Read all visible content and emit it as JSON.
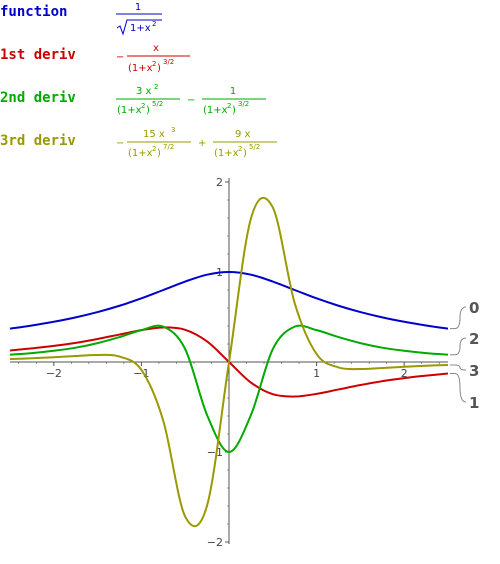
{
  "rows": [
    {
      "label": "function",
      "color": "#0000cc"
    },
    {
      "label": "1st deriv",
      "color": "#cc0000"
    },
    {
      "label": "2nd deriv",
      "color": "#00aa00"
    },
    {
      "label": "3rd deriv",
      "color": "#999900"
    }
  ],
  "formulas": {
    "f0_num": "1",
    "f0_den": "1+x",
    "f0_den_exp": "2",
    "f1_sign": "−",
    "f1_num": "x",
    "f1_den": "(1+x",
    "f1_den_exp": "2",
    "f1_den_close": ")",
    "f1_den_pow": "3/2",
    "f2_t1_num": "3 x",
    "f2_t1_num_exp": "2",
    "f2_t1_den": "(1+x",
    "f2_t1_den_exp": "2",
    "f2_t1_den_close": ")",
    "f2_t1_den_pow": "5/2",
    "f2_op": "−",
    "f2_t2_num": "1",
    "f2_t2_den": "(1+x",
    "f2_t2_den_exp": "2",
    "f2_t2_den_close": ")",
    "f2_t2_den_pow": "3/2",
    "f3_sign": "−",
    "f3_t1_num": "15 x",
    "f3_t1_num_exp": "3",
    "f3_t1_den": "(1+x",
    "f3_t1_den_exp": "2",
    "f3_t1_den_close": ")",
    "f3_t1_den_pow": "7/2",
    "f3_op": "+",
    "f3_t2_num": "9 x",
    "f3_t2_den": "(1+x",
    "f3_t2_den_exp": "2",
    "f3_t2_den_close": ")",
    "f3_t2_den_pow": "5/2"
  },
  "chart_data": {
    "type": "line",
    "xlim": [
      -2.5,
      2.5
    ],
    "ylim": [
      -2,
      2
    ],
    "xticks": [
      -2,
      -1,
      1,
      2
    ],
    "yticks": [
      2,
      1,
      -1,
      -2
    ],
    "tick_labels_x": [
      "−2",
      "−1",
      "1",
      "2"
    ],
    "tick_labels_y": [
      "2",
      "1",
      "−1",
      "−2"
    ],
    "grid": false,
    "series": [
      {
        "name": "0",
        "color": "#0000cc",
        "x": [
          -2.5,
          -2.25,
          -2,
          -1.75,
          -1.5,
          -1.25,
          -1,
          -0.75,
          -0.5,
          -0.25,
          0,
          0.25,
          0.5,
          0.75,
          1,
          1.25,
          1.5,
          1.75,
          2,
          2.25,
          2.5
        ],
        "y": [
          0.371,
          0.406,
          0.447,
          0.496,
          0.555,
          0.625,
          0.707,
          0.8,
          0.894,
          0.97,
          1,
          0.97,
          0.894,
          0.8,
          0.707,
          0.625,
          0.555,
          0.496,
          0.447,
          0.406,
          0.371
        ]
      },
      {
        "name": "1",
        "color": "#cc0000",
        "x": [
          -2.5,
          -2.25,
          -2,
          -1.75,
          -1.5,
          -1.25,
          -1,
          -0.75,
          -0.5,
          -0.25,
          0,
          0.25,
          0.5,
          0.75,
          1,
          1.25,
          1.5,
          1.75,
          2,
          2.25,
          2.5
        ],
        "y": [
          0.128,
          0.152,
          0.179,
          0.213,
          0.256,
          0.305,
          0.354,
          0.384,
          0.358,
          0.228,
          0,
          -0.228,
          -0.358,
          -0.384,
          -0.354,
          -0.305,
          -0.256,
          -0.213,
          -0.179,
          -0.152,
          -0.128
        ]
      },
      {
        "name": "2",
        "color": "#00aa00",
        "x": [
          -2.5,
          -2.25,
          -2,
          -1.75,
          -1.5,
          -1.25,
          -1,
          -0.75,
          -0.5,
          -0.25,
          0,
          0.25,
          0.5,
          0.75,
          1,
          1.25,
          1.5,
          1.75,
          2,
          2.25,
          2.5
        ],
        "y": [
          0.081,
          0.099,
          0.125,
          0.159,
          0.21,
          0.277,
          0.354,
          0.393,
          0.143,
          -0.59,
          -1,
          -0.59,
          0.143,
          0.393,
          0.354,
          0.277,
          0.21,
          0.159,
          0.125,
          0.099,
          0.081
        ]
      },
      {
        "name": "3",
        "color": "#999900",
        "x": [
          -2.5,
          -2.25,
          -2,
          -1.75,
          -1.5,
          -1.25,
          -1,
          -0.75,
          -0.5,
          -0.25,
          0,
          0.25,
          0.5,
          0.75,
          1,
          1.25,
          1.5,
          1.75,
          2,
          2.25,
          2.5
        ],
        "y": [
          0.033,
          0.041,
          0.053,
          0.067,
          0.078,
          0.06,
          -0.088,
          -0.654,
          -1.717,
          -1.593,
          0,
          1.593,
          1.717,
          0.654,
          0.088,
          -0.06,
          -0.078,
          -0.067,
          -0.053,
          -0.041,
          -0.033
        ]
      }
    ],
    "end_labels": [
      "0",
      "2",
      "3",
      "1"
    ]
  }
}
